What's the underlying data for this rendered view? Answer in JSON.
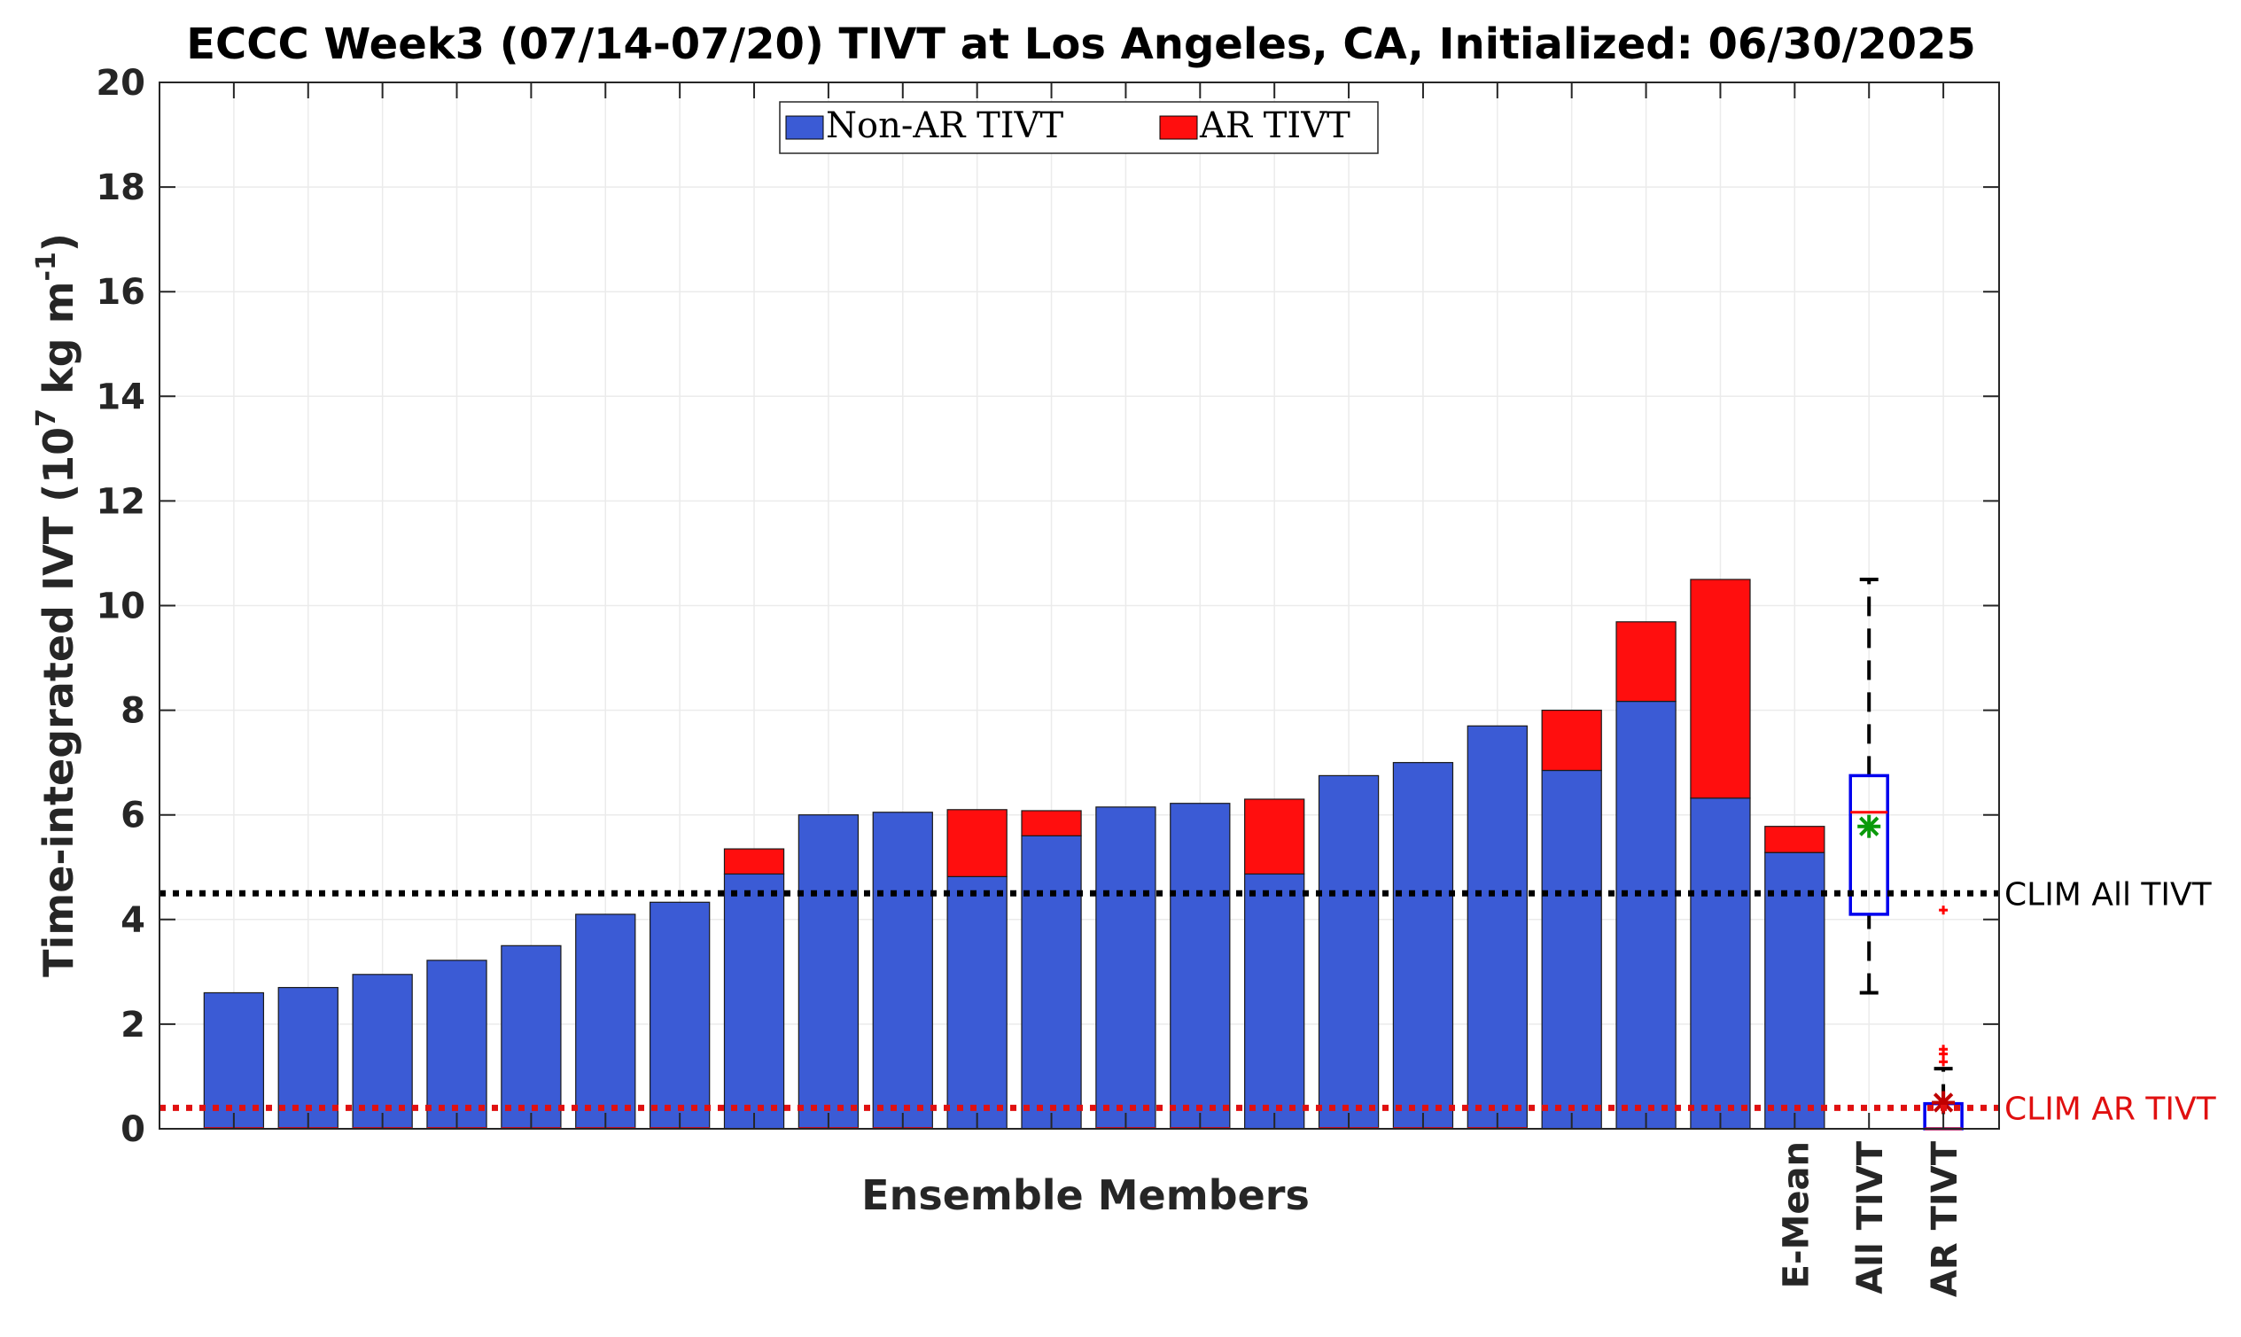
{
  "chart_data": {
    "type": "bar",
    "stacked": true,
    "title": "ECCC Week3 (07/14-07/20) TIVT at Los Angeles, CA, Initialized: 06/30/2025",
    "xlabel": "Ensemble Members",
    "ylabel": {
      "main": "Time-integrated IVT (10",
      "exp1": "7",
      "mid": " kg m",
      "exp2": "-1",
      "end": ")"
    },
    "ylim": [
      0,
      20
    ],
    "yticks": [
      "0",
      "2",
      "4",
      "6",
      "8",
      "10",
      "12",
      "14",
      "16",
      "18",
      "20"
    ],
    "grid": true,
    "legend_position": "top-center",
    "series": [
      {
        "name": "Non-AR TIVT",
        "color": "#3b5bd5",
        "values": [
          2.6,
          2.7,
          2.95,
          3.22,
          3.5,
          4.1,
          4.33,
          4.87,
          6.0,
          6.05,
          4.82,
          5.6,
          6.15,
          6.22,
          4.87,
          6.75,
          7.0,
          7.7,
          6.85,
          8.17,
          6.32,
          5.28
        ]
      },
      {
        "name": "AR TIVT",
        "color": "#ff0e0e",
        "values": [
          0,
          0,
          0,
          0,
          0,
          0,
          0,
          0.48,
          0,
          0,
          1.28,
          0.48,
          0,
          0,
          1.43,
          0,
          0,
          0,
          1.15,
          1.52,
          4.18,
          0.5
        ]
      }
    ],
    "special_labels": [
      "E-Mean",
      "All TIVT",
      "AR TIVT"
    ],
    "boxplots": [
      {
        "label": "All TIVT",
        "min": 2.6,
        "q1": 4.1,
        "median": 6.05,
        "q3": 6.75,
        "max": 10.5,
        "mean": 5.78,
        "outliers": []
      },
      {
        "label": "AR TIVT",
        "min": 0,
        "q1": 0,
        "median": 0,
        "q3": 0.48,
        "max": 1.15,
        "mean": 0.5,
        "outliers": [
          1.28,
          1.43,
          1.52,
          4.18
        ]
      }
    ],
    "reference_lines": [
      {
        "label": "CLIM All TIVT",
        "value": 4.5,
        "color": "#000000"
      },
      {
        "label": "CLIM AR TIVT",
        "value": 0.4,
        "color": "#e01010"
      }
    ]
  }
}
